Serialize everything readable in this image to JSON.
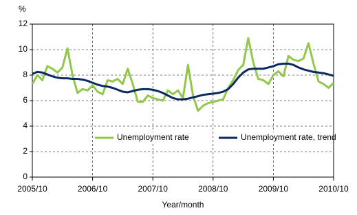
{
  "chart_data": {
    "type": "line",
    "y_label": "%",
    "x_label": "Year/month",
    "categories": [
      "2005/10",
      null,
      null,
      null,
      null,
      null,
      null,
      null,
      null,
      null,
      null,
      null,
      "2006/10",
      null,
      null,
      null,
      null,
      null,
      null,
      null,
      null,
      null,
      null,
      null,
      "2007/10",
      null,
      null,
      null,
      null,
      null,
      null,
      null,
      null,
      null,
      null,
      null,
      "2008/10",
      null,
      null,
      null,
      null,
      null,
      null,
      null,
      null,
      null,
      null,
      null,
      "2009/10",
      null,
      null,
      null,
      null,
      null,
      null,
      null,
      null,
      null,
      null,
      null,
      "2010/10"
    ],
    "series": [
      {
        "name": "Unemployment rate",
        "color": "#92c84a",
        "values": [
          7.3,
          8.0,
          7.6,
          8.7,
          8.5,
          8.2,
          8.6,
          10.1,
          8.0,
          6.6,
          6.9,
          6.8,
          7.2,
          6.7,
          6.5,
          7.6,
          7.5,
          7.7,
          7.3,
          8.5,
          7.3,
          5.9,
          5.9,
          6.4,
          6.2,
          6.1,
          6.0,
          6.8,
          6.5,
          6.8,
          6.2,
          8.8,
          6.4,
          5.2,
          5.6,
          5.8,
          5.9,
          6.0,
          6.1,
          7.0,
          7.6,
          8.4,
          8.8,
          10.9,
          9.0,
          7.7,
          7.6,
          7.3,
          8.0,
          8.3,
          7.9,
          9.5,
          9.2,
          9.1,
          9.3,
          10.5,
          8.9,
          7.5,
          7.3,
          7.0,
          7.4
        ]
      },
      {
        "name": "Unemployment rate, trend",
        "color": "#0b2a5f",
        "values": [
          8.1,
          8.25,
          8.2,
          8.05,
          7.9,
          7.8,
          7.75,
          7.75,
          7.7,
          7.7,
          7.65,
          7.55,
          7.4,
          7.25,
          7.15,
          7.1,
          7.0,
          6.85,
          6.7,
          6.65,
          6.75,
          6.85,
          6.9,
          6.9,
          6.85,
          6.75,
          6.6,
          6.4,
          6.2,
          6.1,
          6.1,
          6.15,
          6.25,
          6.35,
          6.45,
          6.5,
          6.55,
          6.6,
          6.7,
          6.9,
          7.3,
          7.8,
          8.2,
          8.45,
          8.5,
          8.5,
          8.5,
          8.6,
          8.7,
          8.85,
          8.9,
          8.9,
          8.8,
          8.6,
          8.45,
          8.35,
          8.25,
          8.2,
          8.15,
          8.05,
          7.95
        ]
      }
    ],
    "ylim": [
      0,
      12
    ],
    "yticks": [
      0,
      2,
      4,
      6,
      8,
      10,
      12
    ],
    "grid": true
  }
}
